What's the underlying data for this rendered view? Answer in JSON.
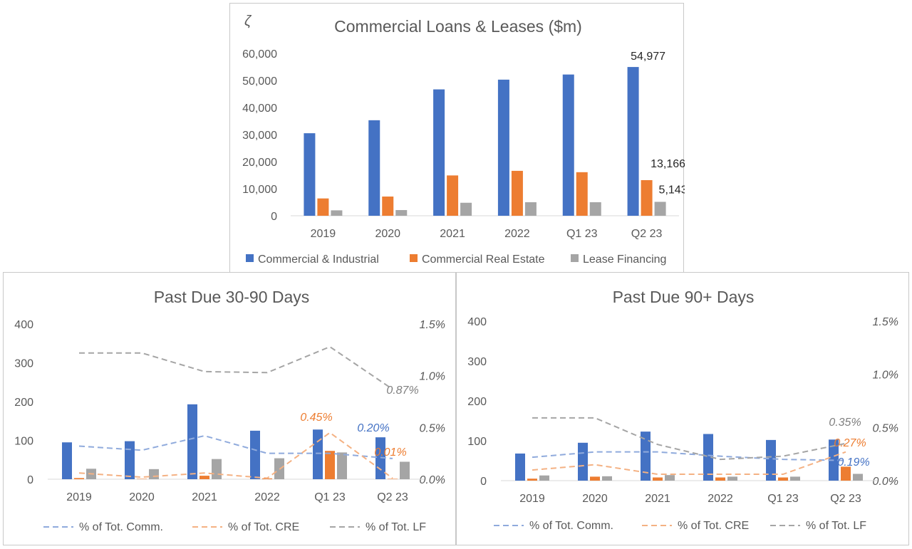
{
  "chart_data": [
    {
      "type": "bar",
      "title": "Commercial Loans & Leases ($m)",
      "corner_mark": "ζ",
      "categories": [
        "2019",
        "2020",
        "2021",
        "2022",
        "Q1 23",
        "Q2 23"
      ],
      "ylim": [
        0,
        60000
      ],
      "yticks": [
        "0",
        "10,000",
        "20,000",
        "30,000",
        "40,000",
        "50,000",
        "60,000"
      ],
      "grid": false,
      "legend_position": "bottom",
      "colors": {
        "c_and_i": "#4472c4",
        "cre": "#ed7d31",
        "lf": "#a5a5a5"
      },
      "series": [
        {
          "name": "Commercial & Industrial",
          "values": [
            30500,
            35300,
            46700,
            50300,
            52200,
            54977
          ]
        },
        {
          "name": "Commercial Real Estate",
          "values": [
            6400,
            7100,
            14900,
            16600,
            16100,
            13166
          ]
        },
        {
          "name": "Lease Financing",
          "values": [
            2000,
            2100,
            4800,
            5000,
            5000,
            5143
          ]
        }
      ],
      "data_labels": [
        "54,977",
        "13,166",
        "5,143"
      ]
    },
    {
      "type": "bar",
      "title": "Past Due 30-90 Days",
      "categories": [
        "2019",
        "2020",
        "2021",
        "2022",
        "Q1 23",
        "Q2 23"
      ],
      "ylim": [
        0,
        400
      ],
      "yticks": [
        "0",
        "100",
        "200",
        "300",
        "400"
      ],
      "y2lim": [
        0,
        1.5
      ],
      "y2ticks": [
        "0.0%",
        "0.5%",
        "1.0%",
        "1.5%"
      ],
      "grid": false,
      "legend_position": "bottom",
      "bars": [
        {
          "values": [
            95,
            98,
            193,
            125,
            128,
            108
          ]
        },
        {
          "values": [
            3,
            1,
            9,
            2,
            73,
            1
          ]
        },
        {
          "values": [
            27,
            26,
            52,
            54,
            69,
            45
          ]
        }
      ],
      "lines": [
        {
          "name": "% of Tot. Comm.",
          "values": [
            0.32,
            0.28,
            0.42,
            0.25,
            0.25,
            0.2
          ]
        },
        {
          "name": "% of Tot. CRE",
          "values": [
            0.06,
            0.02,
            0.06,
            0.01,
            0.45,
            0.01
          ]
        },
        {
          "name": "% of Tot. LF",
          "values": [
            1.22,
            1.22,
            1.04,
            1.03,
            1.28,
            0.87
          ]
        }
      ],
      "data_labels": {
        "lf": "0.87%",
        "cre_q1": "0.45%",
        "comm": "0.20%",
        "cre": "0.01%"
      }
    },
    {
      "type": "bar",
      "title": "Past Due 90+ Days",
      "categories": [
        "2019",
        "2020",
        "2021",
        "2022",
        "Q1 23",
        "Q2 23"
      ],
      "ylim": [
        0,
        400
      ],
      "yticks": [
        "0",
        "100",
        "200",
        "300",
        "400"
      ],
      "y2lim": [
        0,
        1.5
      ],
      "y2ticks": [
        "0.0%",
        "0.5%",
        "1.0%",
        "1.5%"
      ],
      "grid": false,
      "legend_position": "bottom",
      "bars": [
        {
          "values": [
            68,
            95,
            123,
            117,
            102,
            103
          ]
        },
        {
          "values": [
            5,
            10,
            8,
            8,
            8,
            35
          ]
        },
        {
          "values": [
            13,
            11,
            14,
            10,
            10,
            17
          ]
        }
      ],
      "lines": [
        {
          "name": "% of Tot. Comm.",
          "values": [
            0.22,
            0.27,
            0.27,
            0.23,
            0.2,
            0.19
          ]
        },
        {
          "name": "% of Tot. CRE",
          "values": [
            0.1,
            0.15,
            0.06,
            0.06,
            0.06,
            0.27
          ]
        },
        {
          "name": "% of Tot. LF",
          "values": [
            0.59,
            0.59,
            0.34,
            0.2,
            0.23,
            0.35
          ]
        }
      ],
      "data_labels": {
        "lf": "0.35%",
        "cre": "0.27%",
        "comm": "0.19%"
      }
    }
  ]
}
